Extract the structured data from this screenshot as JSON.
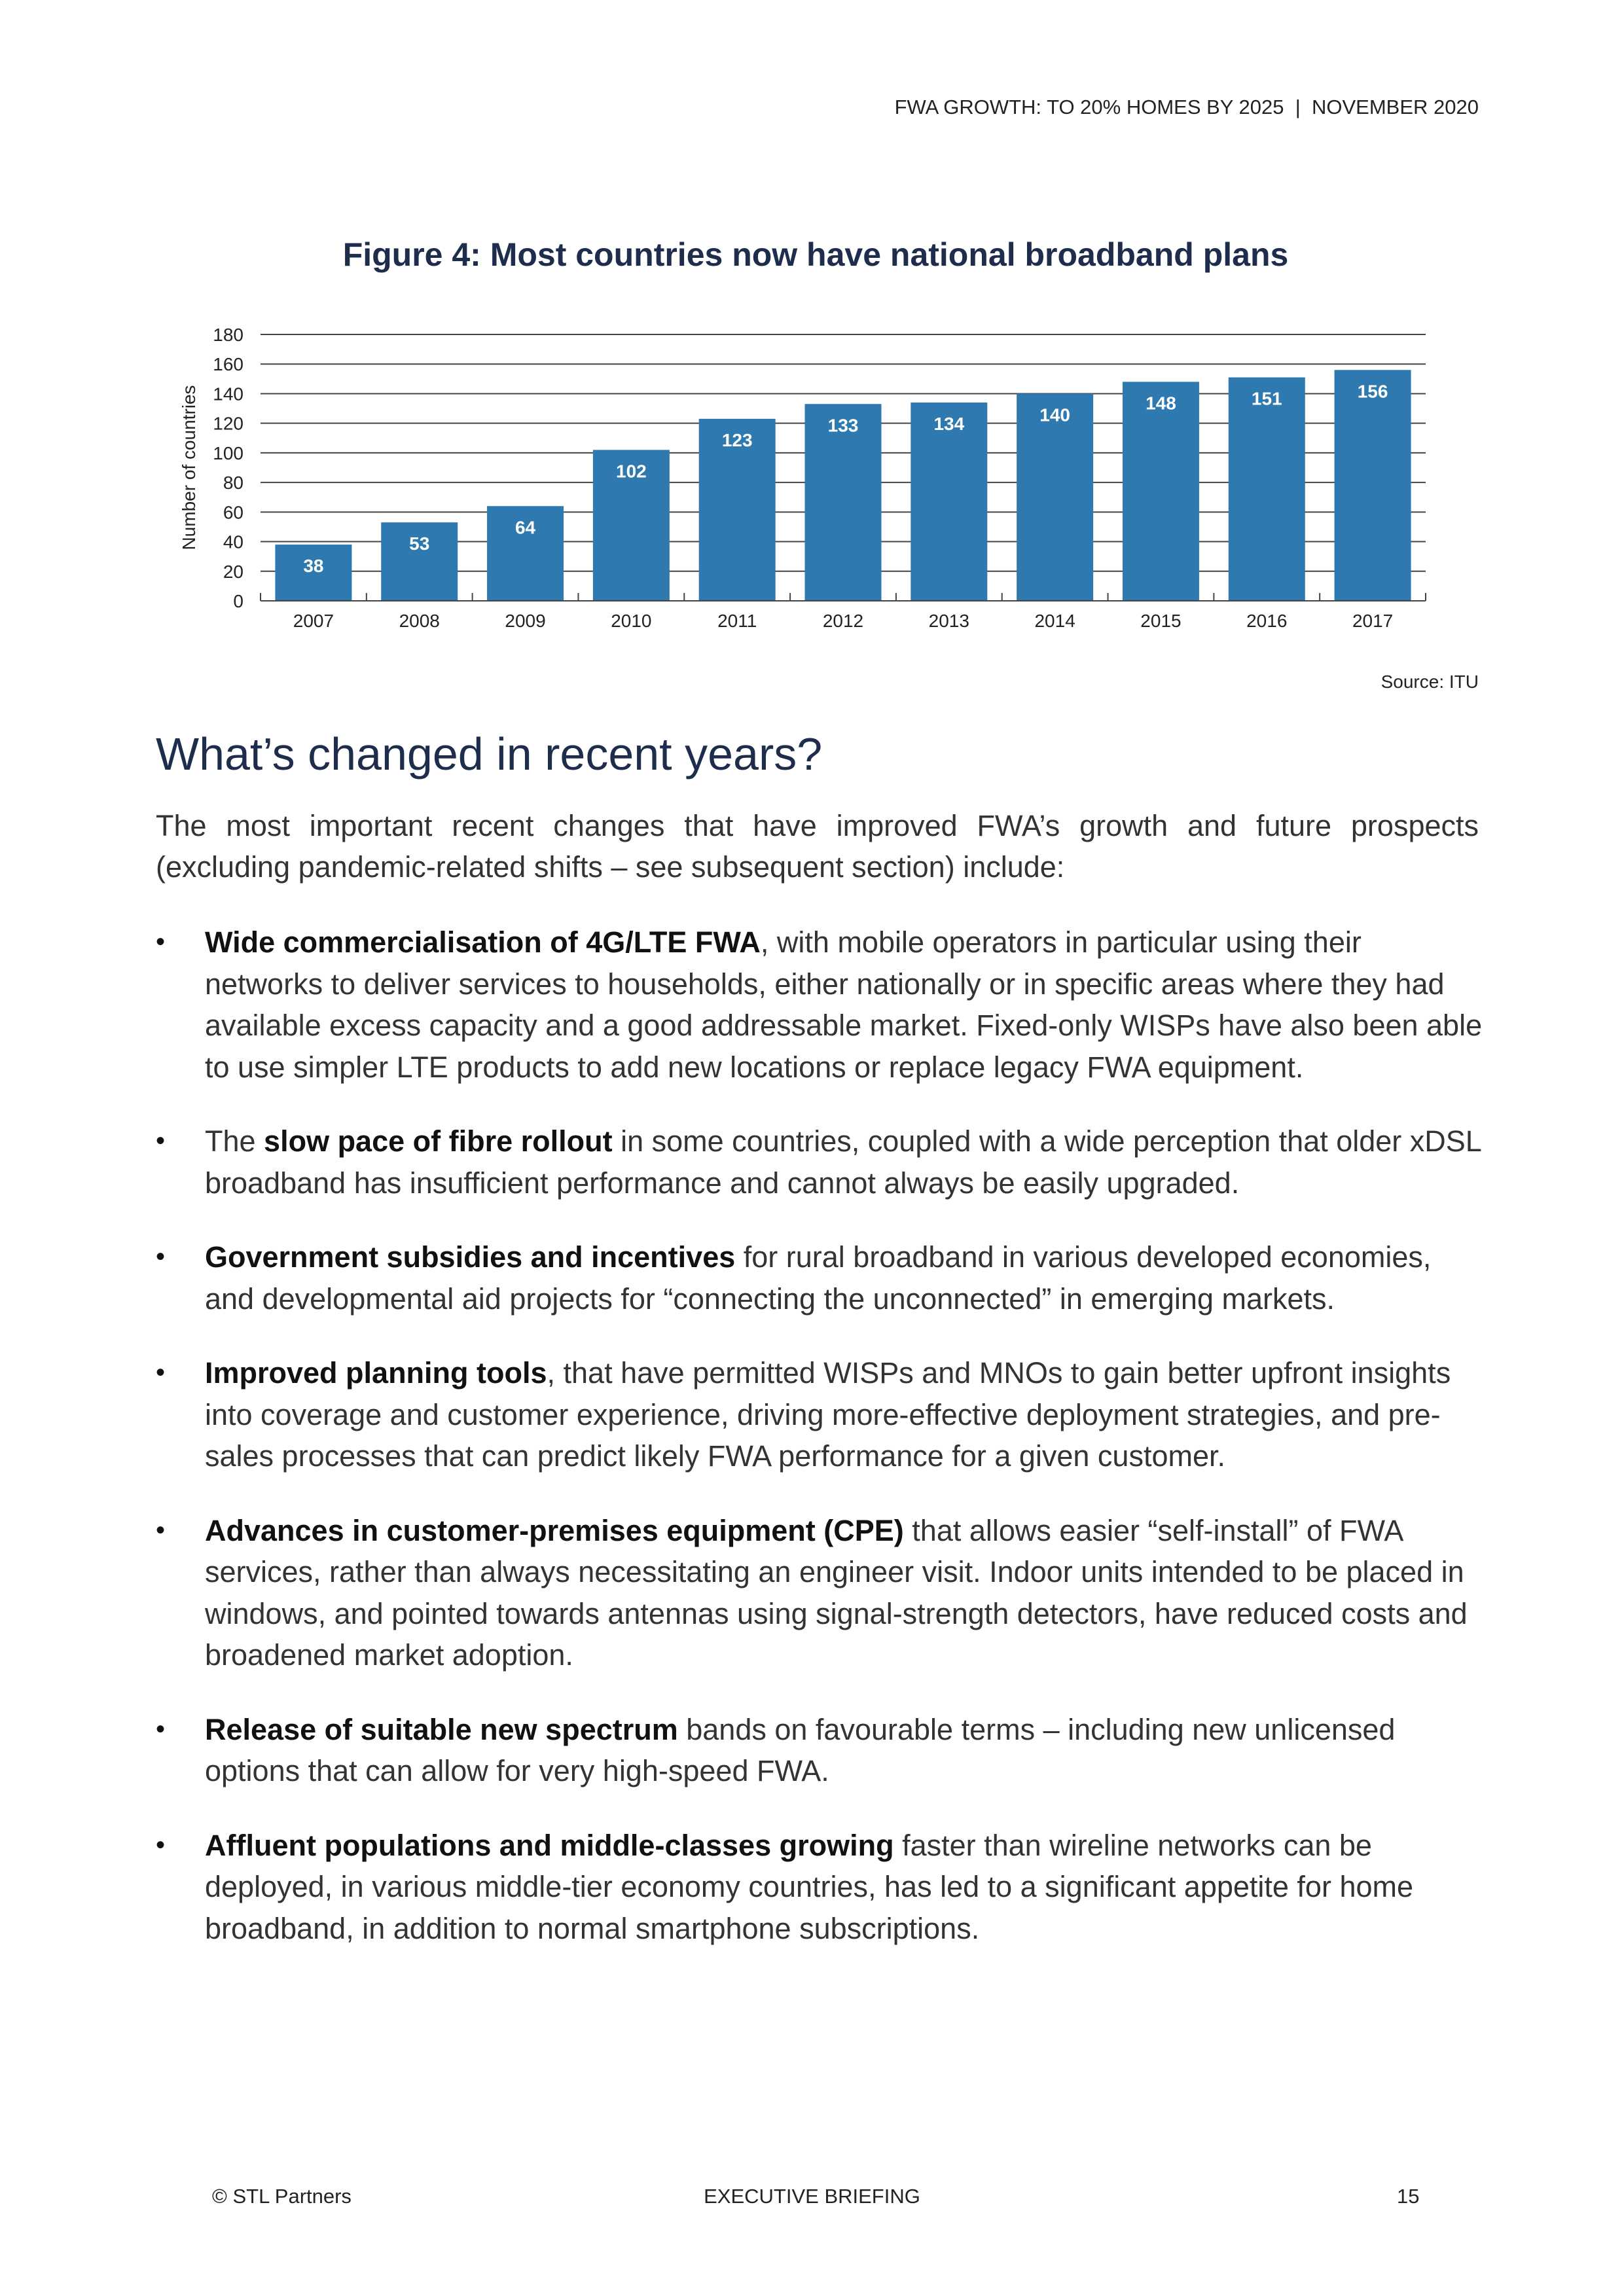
{
  "header": {
    "running_title": "FWA GROWTH: TO 20% HOMES BY 2025  |  NOVEMBER 2020"
  },
  "figure": {
    "title": "Figure 4: Most countries now have national broadband plans",
    "source": "Source: ITU"
  },
  "chart_data": {
    "type": "bar",
    "title": "Figure 4: Most countries now have national broadband plans",
    "xlabel": "",
    "ylabel": "Number of countries",
    "categories": [
      "2007",
      "2008",
      "2009",
      "2010",
      "2011",
      "2012",
      "2013",
      "2014",
      "2015",
      "2016",
      "2017"
    ],
    "values": [
      38,
      53,
      64,
      102,
      123,
      133,
      134,
      140,
      148,
      151,
      156
    ],
    "ylim": [
      0,
      180
    ],
    "yticks": [
      0,
      20,
      40,
      60,
      80,
      100,
      120,
      140,
      160,
      180
    ],
    "grid": true,
    "bar_color": "#2e7ab0"
  },
  "section": {
    "heading": "What’s changed in recent years?",
    "intro": "The most important recent changes that have improved FWA’s growth and future prospects (excluding pandemic-related shifts – see subsequent section) include:",
    "bullets": [
      {
        "pre": "",
        "bold": "Wide commercialisation of 4G/LTE FWA",
        "text": ", with mobile operators in particular using their networks to deliver services to households, either nationally or in specific areas where they had available excess capacity and a good addressable market. Fixed-only WISPs have also been able to use simpler LTE products to add new locations or replace legacy FWA equipment."
      },
      {
        "pre": "The ",
        "bold": "slow pace of fibre rollout",
        "text": " in some countries, coupled with a wide perception that older xDSL broadband has insufficient performance and cannot always be easily upgraded."
      },
      {
        "pre": "",
        "bold": "Government subsidies and incentives",
        "text": " for rural broadband in various developed economies, and developmental aid projects for “connecting the unconnected” in emerging markets."
      },
      {
        "pre": "",
        "bold": "Improved planning tools",
        "text": ", that have permitted WISPs and MNOs to gain better upfront insights into coverage and customer experience, driving more-effective deployment strategies, and pre-sales processes that can predict likely FWA performance for a given customer."
      },
      {
        "pre": "",
        "bold": "Advances in customer-premises equipment (CPE)",
        "text": " that allows easier “self-install” of FWA services, rather than always necessitating an engineer visit. Indoor units intended to be placed in windows, and pointed towards antennas using signal-strength detectors, have reduced costs and broadened market adoption."
      },
      {
        "pre": "",
        "bold": "Release of suitable new spectrum",
        "text": " bands on favourable terms – including new unlicensed options that can allow for very high-speed FWA."
      },
      {
        "pre": "",
        "bold": "Affluent populations and middle-classes growing",
        "text": " faster than wireline networks can be deployed, in various middle-tier economy countries, has led to a significant appetite for home broadband, in addition to normal smartphone subscriptions."
      }
    ],
    "bullet_glyph": "•"
  },
  "footer": {
    "left": "© STL Partners",
    "center": "EXECUTIVE BRIEFING",
    "page": "15"
  }
}
